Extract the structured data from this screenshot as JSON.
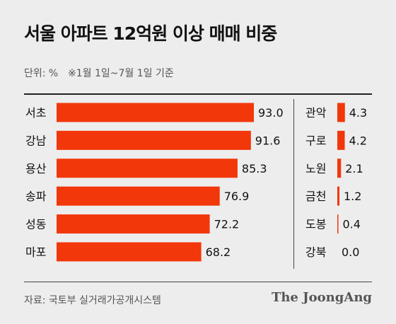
{
  "header": {
    "title": "서울 아파트 12억원 이상 매매 비중",
    "unit_label": "단위: %",
    "period_note": "※1월 1일~7월 1일 기준"
  },
  "footer": {
    "source": "자료: 국토부 실거래가공개시스템",
    "publisher": "The JoongAng"
  },
  "colors": {
    "bar": "#f2370a",
    "text": "#111111",
    "background": "#ededed"
  },
  "chart_data": [
    {
      "type": "bar",
      "orientation": "horizontal",
      "categories": [
        "서초",
        "강남",
        "용산",
        "송파",
        "성동",
        "마포"
      ],
      "values": [
        93.0,
        91.6,
        85.3,
        76.9,
        72.2,
        68.2
      ],
      "value_labels": [
        "93.0",
        "91.6",
        "85.3",
        "76.9",
        "72.2",
        "68.2"
      ],
      "xlim": [
        0,
        100
      ]
    },
    {
      "type": "bar",
      "orientation": "horizontal",
      "categories": [
        "관악",
        "구로",
        "노원",
        "금천",
        "도봉",
        "강북"
      ],
      "values": [
        4.3,
        4.2,
        2.1,
        1.2,
        0.4,
        0.0
      ],
      "value_labels": [
        "4.3",
        "4.2",
        "2.1",
        "1.2",
        "0.4",
        "0.0"
      ],
      "xlim": [
        0,
        100
      ]
    }
  ]
}
